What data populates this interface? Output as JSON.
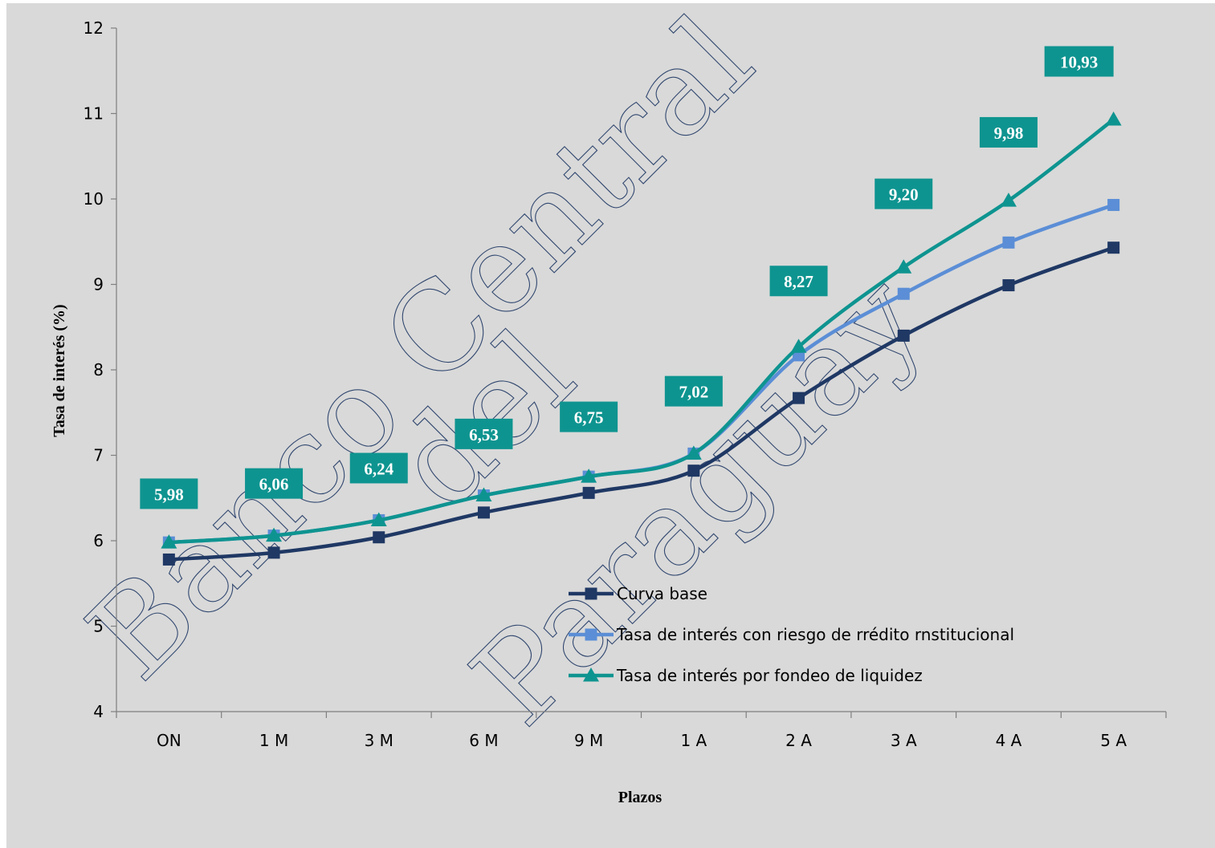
{
  "chart_data": {
    "type": "line",
    "title": "",
    "xlabel": "Plazos",
    "ylabel": "Tasa de interés (%)",
    "categories": [
      "ON",
      "1 M",
      "3 M",
      "6 M",
      "9 M",
      "1 A",
      "2 A",
      "3 A",
      "4 A",
      "5 A"
    ],
    "ylim": [
      4,
      12
    ],
    "yticks": [
      4,
      5,
      6,
      7,
      8,
      9,
      10,
      11,
      12
    ],
    "yticklabels": [
      "4",
      "5",
      "6",
      "7",
      "8",
      "9",
      "10",
      "11",
      "12"
    ],
    "grid": false,
    "legend_position": "bottom-right",
    "series": [
      {
        "name": "Curva base",
        "marker": "square",
        "color": "#1f3864",
        "values": [
          5.78,
          5.86,
          6.04,
          6.33,
          6.56,
          6.82,
          7.67,
          8.4,
          8.99,
          9.43
        ]
      },
      {
        "name": "Tasa de interés con riesgo de rrédito rnstitucional",
        "marker": "square",
        "color": "#5b8ed6",
        "values": [
          5.98,
          6.06,
          6.24,
          6.53,
          6.75,
          7.02,
          8.17,
          8.89,
          9.49,
          9.93
        ]
      },
      {
        "name": "Tasa de interés por fondeo de liquidez",
        "marker": "triangle",
        "color": "#0e9490",
        "values": [
          5.98,
          6.06,
          6.24,
          6.53,
          6.75,
          7.02,
          8.27,
          9.2,
          9.98,
          10.93
        ]
      }
    ],
    "data_labels": [
      "5,98",
      "6,06",
      "6,24",
      "6,53",
      "6,75",
      "7,02",
      "8,27",
      "9,20",
      "9,98",
      "10,93"
    ],
    "data_label_y": [
      6.55,
      6.67,
      6.85,
      7.25,
      7.45,
      7.75,
      9.04,
      10.06,
      10.78,
      11.61
    ],
    "data_label_color": "#0e9490",
    "watermark": [
      "Banco Central",
      "del",
      "Paraguay"
    ]
  },
  "colors": {
    "plot_background": "#d9d9d9",
    "axis": "#7f7f7f",
    "text": "#000000"
  }
}
